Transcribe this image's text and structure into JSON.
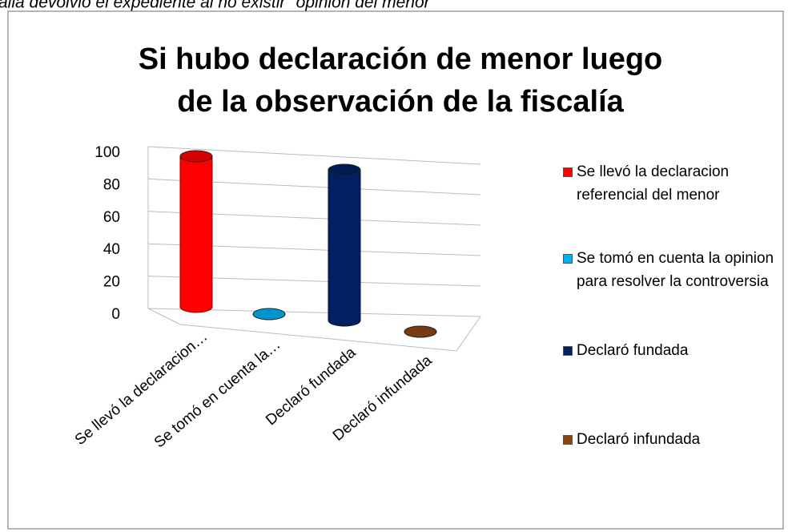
{
  "header": "alla devolvió el expediente al no existir \"opinión del menor\"",
  "chart_data": {
    "type": "bar3d",
    "title": [
      "Si hubo declaración de menor luego",
      "de la observación de la fiscalía"
    ],
    "categories": [
      "Se llevó la declaracion…",
      "Se tomó en cuenta la…",
      "Declaró fundada",
      "Declaró infundada"
    ],
    "legend": [
      "Se llevó la declaracion referencial del menor",
      "Se tomó en cuenta la opinion para resolver la controversia",
      "Declaró fundada",
      "Declaró infundada"
    ],
    "values": [
      100,
      0,
      100,
      0
    ],
    "colors": [
      "#ff0000",
      "#00b0f0",
      "#002060",
      "#8b4513"
    ],
    "ylim": [
      0,
      100
    ],
    "yticks": [
      0,
      20,
      40,
      60,
      80,
      100
    ],
    "grid": true
  }
}
